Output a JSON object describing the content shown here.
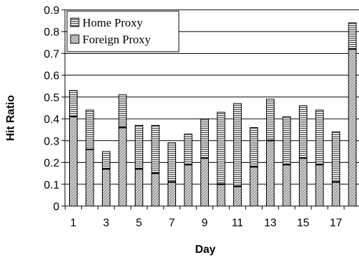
{
  "chart_data": {
    "type": "bar",
    "stacked": true,
    "xlabel": "Day",
    "ylabel": "Hit Ratio",
    "ylim": [
      0,
      0.9
    ],
    "y_ticks": [
      "0",
      "0.1",
      "0.2",
      "0.3",
      "0.4",
      "0.5",
      "0.6",
      "0.7",
      "0.8",
      "0.9"
    ],
    "categories": [
      1,
      2,
      3,
      4,
      5,
      6,
      7,
      8,
      9,
      10,
      11,
      12,
      13,
      14,
      15,
      16,
      17,
      18
    ],
    "x_tick_labels": [
      "1",
      "",
      "3",
      "",
      "5",
      "",
      "7",
      "",
      "9",
      "",
      "11",
      "",
      "13",
      "",
      "15",
      "",
      "17",
      ""
    ],
    "grid": "horizontal",
    "legend": "top-left",
    "series": [
      {
        "name": "Foreign Proxy",
        "pattern": "diagonal-hatch",
        "values": [
          0.41,
          0.26,
          0.17,
          0.36,
          0.17,
          0.15,
          0.11,
          0.19,
          0.22,
          0.1,
          0.09,
          0.18,
          0.3,
          0.19,
          0.22,
          0.19,
          0.11,
          0.72
        ]
      },
      {
        "name": "Home Proxy",
        "pattern": "horizontal-stripes",
        "values": [
          0.12,
          0.18,
          0.08,
          0.15,
          0.2,
          0.22,
          0.18,
          0.14,
          0.18,
          0.33,
          0.38,
          0.18,
          0.19,
          0.22,
          0.24,
          0.25,
          0.23,
          0.12
        ]
      }
    ]
  }
}
